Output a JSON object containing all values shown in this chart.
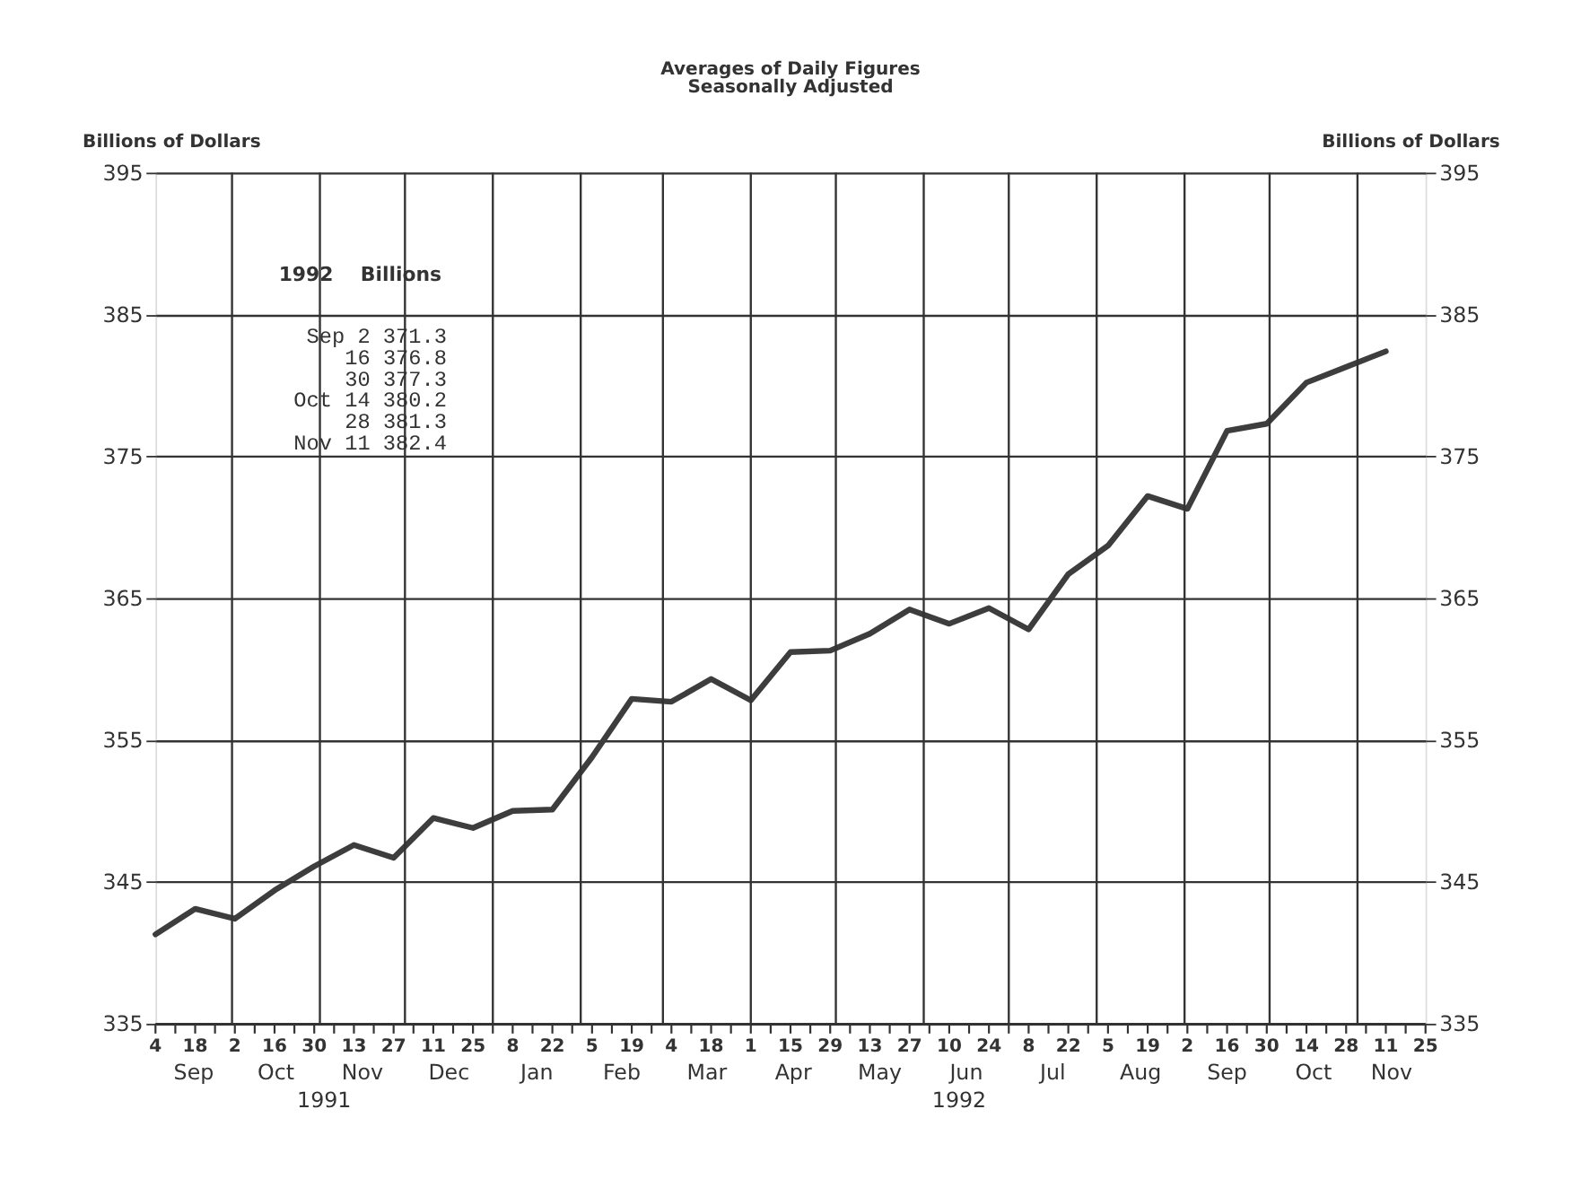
{
  "chart_data": {
    "type": "line",
    "title": "Averages of Daily Figures",
    "subtitle": "Seasonally Adjusted",
    "ylabel": "Billions of Dollars",
    "y2label": "Billions of Dollars",
    "x": [
      "1991-09-04",
      "1991-09-18",
      "1991-10-02",
      "1991-10-16",
      "1991-10-30",
      "1991-11-13",
      "1991-11-27",
      "1991-12-11",
      "1991-12-25",
      "1992-01-08",
      "1992-01-22",
      "1992-02-05",
      "1992-02-19",
      "1992-03-04",
      "1992-03-18",
      "1992-04-01",
      "1992-04-15",
      "1992-04-29",
      "1992-05-13",
      "1992-05-27",
      "1992-06-10",
      "1992-06-24",
      "1992-07-08",
      "1992-07-22",
      "1992-08-05",
      "1992-08-19",
      "1992-09-02",
      "1992-09-16",
      "1992-09-30",
      "1992-10-14",
      "1992-10-28",
      "1992-11-11"
    ],
    "series": [
      {
        "color": "#3d3d3d",
        "values": [
          341.3,
          343.1,
          342.4,
          344.4,
          346.1,
          347.6,
          346.7,
          349.5,
          348.8,
          350.0,
          350.1,
          353.8,
          357.9,
          357.7,
          359.3,
          357.8,
          361.2,
          361.3,
          362.5,
          364.2,
          363.2,
          364.3,
          362.8,
          366.7,
          368.7,
          372.2,
          371.3,
          376.8,
          377.3,
          380.2,
          381.3,
          382.4
        ],
        "name": null
      }
    ],
    "ylim": [
      335,
      395
    ],
    "yticks": [
      335,
      345,
      355,
      365,
      375,
      385,
      395
    ],
    "y2lim": [
      335,
      395
    ],
    "y2ticks": [
      335,
      345,
      355,
      365,
      375,
      385,
      395
    ],
    "xlim": [
      "1991-09-04",
      "1992-11-25"
    ],
    "xticks": [
      {
        "value": "1991-09-04",
        "label": "4"
      },
      {
        "value": "1991-09-11",
        "label": null
      },
      {
        "value": "1991-09-18",
        "label": "18"
      },
      {
        "value": "1991-09-25",
        "label": null
      },
      {
        "value": "1991-10-02",
        "label": "2"
      },
      {
        "value": "1991-10-09",
        "label": null
      },
      {
        "value": "1991-10-16",
        "label": "16"
      },
      {
        "value": "1991-10-23",
        "label": null
      },
      {
        "value": "1991-10-30",
        "label": "30"
      },
      {
        "value": "1991-11-06",
        "label": null
      },
      {
        "value": "1991-11-13",
        "label": "13"
      },
      {
        "value": "1991-11-20",
        "label": null
      },
      {
        "value": "1991-11-27",
        "label": "27"
      },
      {
        "value": "1991-12-04",
        "label": null
      },
      {
        "value": "1991-12-11",
        "label": "11"
      },
      {
        "value": "1991-12-18",
        "label": null
      },
      {
        "value": "1991-12-25",
        "label": "25"
      },
      {
        "value": "1992-01-01",
        "label": null
      },
      {
        "value": "1992-01-08",
        "label": "8"
      },
      {
        "value": "1992-01-15",
        "label": null
      },
      {
        "value": "1992-01-22",
        "label": "22"
      },
      {
        "value": "1992-01-29",
        "label": null
      },
      {
        "value": "1992-02-05",
        "label": "5"
      },
      {
        "value": "1992-02-12",
        "label": null
      },
      {
        "value": "1992-02-19",
        "label": "19"
      },
      {
        "value": "1992-02-26",
        "label": null
      },
      {
        "value": "1992-03-04",
        "label": "4"
      },
      {
        "value": "1992-03-11",
        "label": null
      },
      {
        "value": "1992-03-18",
        "label": "18"
      },
      {
        "value": "1992-03-25",
        "label": null
      },
      {
        "value": "1992-04-01",
        "label": "1"
      },
      {
        "value": "1992-04-08",
        "label": null
      },
      {
        "value": "1992-04-15",
        "label": "15"
      },
      {
        "value": "1992-04-22",
        "label": null
      },
      {
        "value": "1992-04-29",
        "label": "29"
      },
      {
        "value": "1992-05-06",
        "label": null
      },
      {
        "value": "1992-05-13",
        "label": "13"
      },
      {
        "value": "1992-05-20",
        "label": null
      },
      {
        "value": "1992-05-27",
        "label": "27"
      },
      {
        "value": "1992-06-03",
        "label": null
      },
      {
        "value": "1992-06-10",
        "label": "10"
      },
      {
        "value": "1992-06-17",
        "label": null
      },
      {
        "value": "1992-06-24",
        "label": "24"
      },
      {
        "value": "1992-07-01",
        "label": null
      },
      {
        "value": "1992-07-08",
        "label": "8"
      },
      {
        "value": "1992-07-15",
        "label": null
      },
      {
        "value": "1992-07-22",
        "label": "22"
      },
      {
        "value": "1992-07-29",
        "label": null
      },
      {
        "value": "1992-08-05",
        "label": "5"
      },
      {
        "value": "1992-08-12",
        "label": null
      },
      {
        "value": "1992-08-19",
        "label": "19"
      },
      {
        "value": "1992-08-26",
        "label": null
      },
      {
        "value": "1992-09-02",
        "label": "2"
      },
      {
        "value": "1992-09-09",
        "label": null
      },
      {
        "value": "1992-09-16",
        "label": "16"
      },
      {
        "value": "1992-09-23",
        "label": null
      },
      {
        "value": "1992-09-30",
        "label": "30"
      },
      {
        "value": "1992-10-07",
        "label": null
      },
      {
        "value": "1992-10-14",
        "label": "14"
      },
      {
        "value": "1992-10-21",
        "label": null
      },
      {
        "value": "1992-10-28",
        "label": "28"
      },
      {
        "value": "1992-11-04",
        "label": null
      },
      {
        "value": "1992-11-11",
        "label": "11"
      },
      {
        "value": "1992-11-18",
        "label": null
      },
      {
        "value": "1992-11-25",
        "label": "25"
      }
    ],
    "ref_lines": [
      {
        "axis": "x",
        "value": "1991-10-01"
      },
      {
        "axis": "x",
        "value": "1991-11-01"
      },
      {
        "axis": "x",
        "value": "1991-12-01"
      },
      {
        "axis": "x",
        "value": "1992-01-01"
      },
      {
        "axis": "x",
        "value": "1992-02-01"
      },
      {
        "axis": "x",
        "value": "1992-03-01"
      },
      {
        "axis": "x",
        "value": "1992-04-01"
      },
      {
        "axis": "x",
        "value": "1992-05-01"
      },
      {
        "axis": "x",
        "value": "1992-06-01"
      },
      {
        "axis": "x",
        "value": "1992-07-01"
      },
      {
        "axis": "x",
        "value": "1992-08-01"
      },
      {
        "axis": "x",
        "value": "1992-09-01"
      },
      {
        "axis": "x",
        "value": "1992-10-01"
      },
      {
        "axis": "x",
        "value": "1992-11-01"
      }
    ],
    "annotations": [
      "Sep",
      "Oct",
      "Nov",
      "Dec",
      "Jan",
      "Feb",
      "Mar",
      "Apr",
      "May",
      "Jun",
      "Jul",
      "Aug",
      "Sep",
      "Oct",
      "Nov",
      "1991",
      "1992",
      "1992",
      "Billions",
      "Sep 2 371.3",
      "16 376.8",
      "30 377.3",
      "Oct 14 380.2",
      "28 381.3",
      "Nov 11 382.4"
    ],
    "grid": "y"
  }
}
